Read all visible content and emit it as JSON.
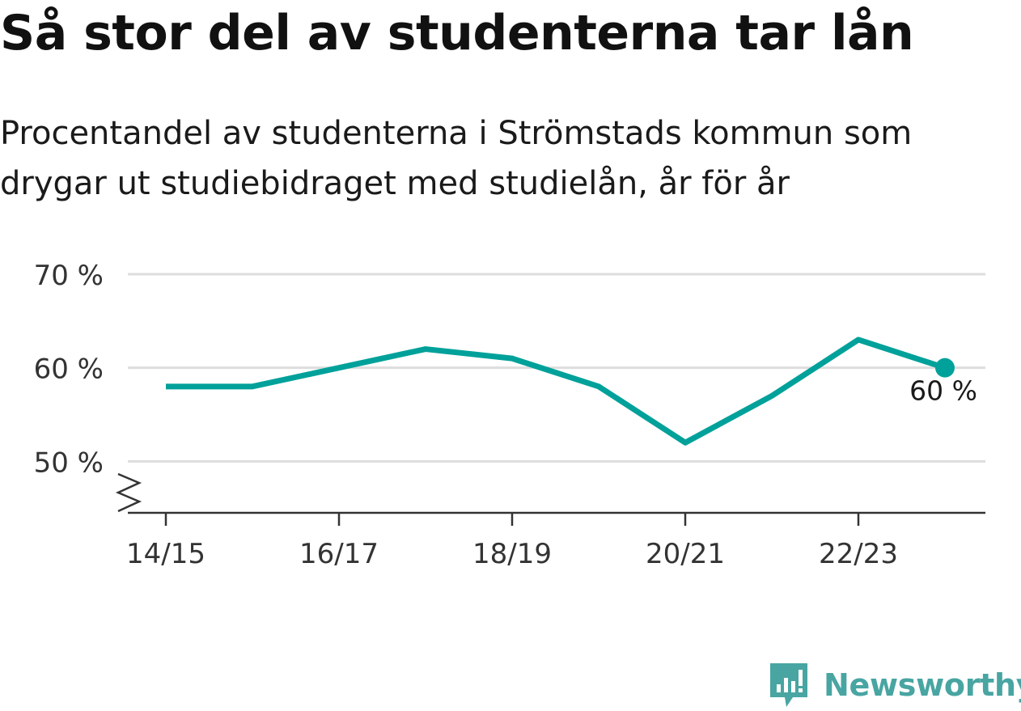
{
  "title": "Så stor del av studenterna tar lån",
  "subtitle": "Procentandel av studenterna i Strömstads kommun som drygar ut studiebidraget med studielån, år för år",
  "brand": {
    "name": "Newsworthy",
    "icon": "newsworthy-logo-icon"
  },
  "colors": {
    "line": "#00a19a",
    "grid": "#dddddd",
    "axis": "#333333",
    "brand": "#48a5a2"
  },
  "chart_data": {
    "type": "line",
    "x": [
      "14/15",
      "15/16",
      "16/17",
      "17/18",
      "18/19",
      "19/20",
      "20/21",
      "21/22",
      "22/23",
      "23/24"
    ],
    "values": [
      58,
      58,
      60,
      62,
      61,
      58,
      52,
      57,
      63,
      60
    ],
    "xticks": [
      "14/15",
      "16/17",
      "18/19",
      "20/21",
      "22/23"
    ],
    "yticks": [
      50,
      60,
      70
    ],
    "ytick_labels": [
      "50 %",
      "60 %",
      "70 %"
    ],
    "ylim": [
      44.5,
      70
    ],
    "axis_break": true,
    "grid": true,
    "end_label": "60 %"
  }
}
